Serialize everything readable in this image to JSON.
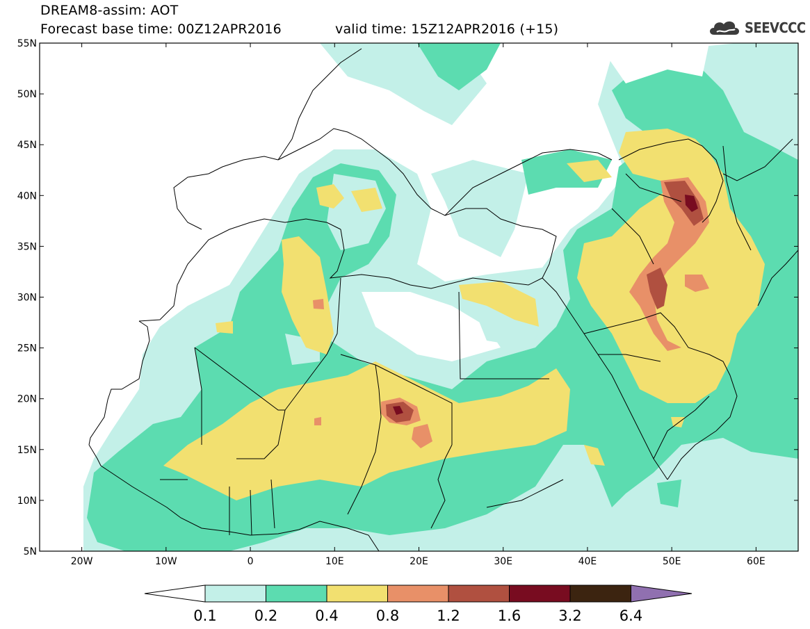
{
  "header": {
    "title": "DREAM8-assim: AOT",
    "base_time": "Forecast base time: 00Z12APR2016",
    "valid_time": "valid time: 15Z12APR2016 (+15)"
  },
  "logo": {
    "text": "SEEVCCC",
    "icon": "cloud-icon",
    "color": "#3c3c3c"
  },
  "map": {
    "lon_range": [
      -25,
      65
    ],
    "lat_range": [
      5,
      55
    ],
    "lat_ticks": [
      "5N",
      "10N",
      "15N",
      "20N",
      "25N",
      "30N",
      "35N",
      "40N",
      "45N",
      "50N",
      "55N"
    ],
    "lon_ticks": [
      "20W",
      "10W",
      "0",
      "10E",
      "20E",
      "30E",
      "40E",
      "50E",
      "60E"
    ],
    "background": "#ffffff",
    "coastline_color": "#000000"
  },
  "colorbar": {
    "levels": [
      "0.1",
      "0.2",
      "0.4",
      "0.8",
      "1.2",
      "1.6",
      "3.2",
      "6.4"
    ],
    "colors": [
      "#ffffff",
      "#c3f0e8",
      "#5cdcb0",
      "#f2e070",
      "#e89068",
      "#b05040",
      "#780c20",
      "#3c2410",
      "#9070b0"
    ]
  }
}
